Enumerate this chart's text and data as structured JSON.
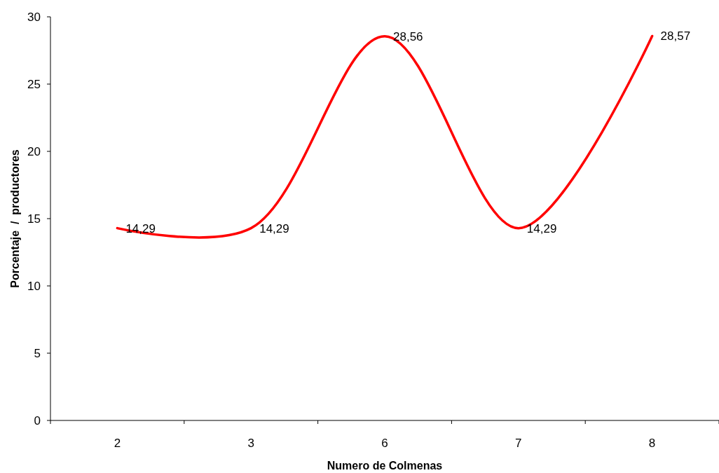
{
  "chart_data": {
    "type": "line",
    "xlabel": "Numero de Colmenas",
    "ylabel": "Porcentaje  /  productores",
    "categories": [
      "2",
      "3",
      "6",
      "7",
      "8"
    ],
    "series": [
      {
        "color": "#ff0000",
        "values": [
          14.29,
          14.29,
          28.56,
          14.29,
          28.57
        ],
        "value_labels": [
          "14,29",
          "14,29",
          "28,56",
          "14,29",
          "28,57"
        ]
      }
    ],
    "ylim": [
      0,
      30
    ],
    "yticks": [
      0,
      5,
      10,
      15,
      20,
      25,
      30
    ],
    "grid": false,
    "marker": "none",
    "line_style": "solid"
  }
}
